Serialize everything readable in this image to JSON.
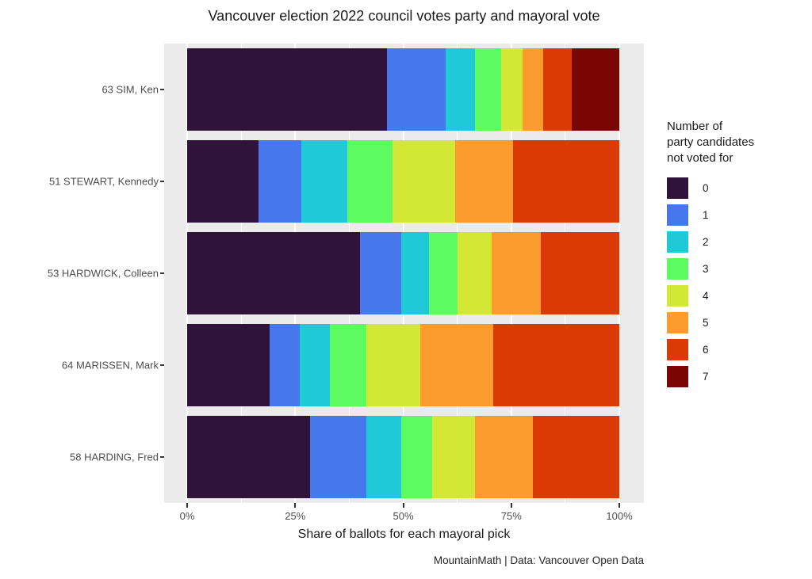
{
  "chart_data": {
    "type": "bar",
    "orientation": "horizontal",
    "stacked": true,
    "units": "percent of ballots",
    "title": "Vancouver election 2022 council votes party and mayoral vote",
    "xlabel": "Share of ballots for each mayoral pick",
    "caption": "MountainMath | Data: Vancouver Open Data",
    "xlim": [
      0,
      100
    ],
    "x_tick_values": [
      0,
      25,
      50,
      75,
      100
    ],
    "x_tick_labels": [
      "0%",
      "25%",
      "50%",
      "75%",
      "100%"
    ],
    "grid": {
      "major_percent": [
        0,
        25,
        50,
        75,
        100
      ],
      "minor_percent": [
        12.5,
        37.5,
        62.5,
        87.5
      ]
    },
    "categories": [
      "63 SIM, Ken",
      "51 STEWART, Kennedy",
      "53 HARDWICK, Colleen",
      "64 MARISSEN, Mark",
      "58 HARDING, Fred"
    ],
    "legend": {
      "position": "right",
      "title_lines": [
        "Number of",
        "party candidates",
        "not voted for"
      ],
      "entries": [
        {
          "label": "0",
          "color": "#30123B"
        },
        {
          "label": "1",
          "color": "#4678EB"
        },
        {
          "label": "2",
          "color": "#20C9D7"
        },
        {
          "label": "3",
          "color": "#5DFA61"
        },
        {
          "label": "4",
          "color": "#D3E835"
        },
        {
          "label": "5",
          "color": "#FD9C2E"
        },
        {
          "label": "6",
          "color": "#DB3A07"
        },
        {
          "label": "7",
          "color": "#7A0603"
        }
      ]
    },
    "rows": [
      {
        "category": "63 SIM, Ken",
        "values": [
          46.3,
          13.5,
          6.8,
          6.0,
          5.0,
          4.8,
          6.6,
          11.0
        ]
      },
      {
        "category": "51 STEWART, Kennedy",
        "values": [
          16.5,
          10.0,
          10.5,
          10.5,
          14.5,
          13.5,
          24.5
        ]
      },
      {
        "category": "53 HARDWICK, Colleen",
        "values": [
          40.0,
          9.5,
          6.5,
          6.5,
          8.0,
          11.3,
          18.2
        ]
      },
      {
        "category": "64 MARISSEN, Mark",
        "values": [
          19.0,
          7.0,
          7.0,
          8.5,
          12.5,
          16.8,
          29.2
        ]
      },
      {
        "category": "58 HARDING, Fred",
        "values": [
          28.5,
          13.0,
          8.0,
          7.2,
          9.9,
          13.4,
          20.0
        ]
      }
    ],
    "colors": {
      "panel_background": "#EBEBEB",
      "gridline": "#FFFFFF",
      "axis_text": "#4D4D4D",
      "text": "#1A1A1A"
    }
  }
}
